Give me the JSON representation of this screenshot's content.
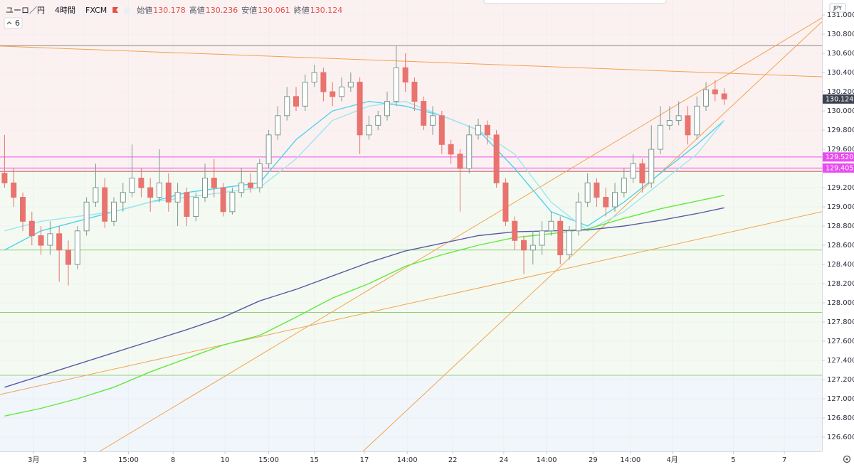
{
  "chart_data": {
    "type": "candlestick",
    "symbol": "ユーロ／円",
    "interval": "4時間",
    "source": "FXCM",
    "ohlc_labels": [
      "始値",
      "高値",
      "安値",
      "終値"
    ],
    "indicator_count": 6,
    "currency": "JPY",
    "open": [
      129.35,
      129.25,
      129.1,
      128.85,
      128.7,
      128.6,
      128.72,
      128.55,
      128.4,
      128.75,
      129.05,
      129.2,
      128.85,
      129.05,
      129.15,
      129.3,
      129.2,
      129.1,
      129.25,
      129.05,
      129.15,
      128.9,
      129.1,
      129.3,
      129.2,
      128.95,
      129.15,
      129.25,
      129.2,
      129.45,
      129.75,
      129.95,
      130.15,
      130.05,
      130.3,
      130.4,
      130.2,
      130.15,
      130.25,
      130.3,
      129.75,
      129.85,
      129.95,
      130.1,
      130.45,
      130.3,
      130.1,
      129.85,
      129.95,
      129.65,
      129.55,
      129.4,
      129.75,
      129.85,
      129.75,
      129.25,
      128.85,
      128.65,
      128.55,
      128.6,
      128.75,
      128.85,
      128.5,
      128.75,
      129.05,
      129.25,
      129.1,
      129.0,
      129.15,
      129.3,
      129.45,
      129.25,
      129.6,
      129.85,
      129.9,
      129.95,
      129.75,
      130.05,
      130.22,
      130.178
    ],
    "high": [
      129.75,
      129.4,
      129.15,
      128.95,
      128.8,
      128.85,
      128.8,
      128.65,
      128.8,
      129.1,
      129.45,
      129.3,
      129.1,
      129.25,
      129.65,
      129.4,
      129.3,
      129.6,
      129.35,
      129.25,
      129.2,
      129.15,
      129.45,
      129.5,
      129.25,
      129.2,
      129.4,
      129.35,
      129.5,
      129.8,
      130.05,
      130.25,
      130.25,
      130.38,
      130.48,
      130.45,
      130.3,
      130.35,
      130.4,
      130.35,
      129.95,
      130.0,
      130.2,
      130.68,
      130.6,
      130.35,
      130.15,
      130.05,
      130.0,
      129.7,
      129.6,
      129.85,
      129.92,
      129.9,
      129.8,
      129.3,
      128.9,
      128.7,
      128.75,
      128.85,
      128.95,
      128.9,
      128.8,
      129.15,
      129.35,
      129.3,
      129.2,
      129.25,
      129.4,
      129.55,
      129.5,
      129.85,
      130.05,
      130.05,
      130.1,
      130.05,
      130.15,
      130.3,
      130.32,
      130.236
    ],
    "low": [
      129.2,
      129.0,
      128.75,
      128.6,
      128.5,
      128.5,
      128.22,
      128.18,
      128.35,
      128.7,
      129.0,
      128.78,
      128.8,
      128.95,
      129.1,
      129.1,
      128.95,
      129.05,
      128.95,
      128.8,
      128.8,
      128.85,
      129.05,
      129.1,
      128.9,
      128.92,
      129.1,
      129.15,
      129.15,
      129.4,
      129.7,
      129.9,
      130.0,
      130.0,
      130.25,
      130.1,
      130.05,
      130.1,
      130.2,
      129.55,
      129.7,
      129.8,
      129.9,
      130.05,
      130.2,
      130.0,
      129.8,
      129.75,
      129.55,
      129.45,
      128.95,
      129.35,
      129.7,
      129.65,
      129.2,
      128.8,
      128.55,
      128.3,
      128.4,
      128.5,
      128.7,
      128.4,
      128.45,
      128.7,
      129.0,
      129.0,
      128.9,
      128.95,
      129.1,
      129.25,
      129.15,
      129.2,
      129.55,
      129.8,
      129.85,
      129.65,
      129.7,
      130.0,
      130.1,
      130.061
    ],
    "close": [
      129.25,
      129.1,
      128.85,
      128.7,
      128.6,
      128.72,
      128.55,
      128.4,
      128.75,
      129.05,
      129.2,
      128.85,
      129.05,
      129.15,
      129.3,
      129.2,
      129.1,
      129.25,
      129.05,
      129.15,
      128.9,
      129.1,
      129.3,
      129.2,
      128.95,
      129.15,
      129.25,
      129.2,
      129.45,
      129.75,
      129.95,
      130.15,
      130.05,
      130.3,
      130.4,
      130.2,
      130.15,
      130.25,
      130.3,
      129.75,
      129.85,
      129.95,
      130.1,
      130.45,
      130.3,
      130.1,
      129.85,
      129.95,
      129.65,
      129.55,
      129.4,
      129.75,
      129.85,
      129.75,
      129.25,
      128.85,
      128.65,
      128.55,
      128.6,
      128.75,
      128.85,
      128.5,
      128.75,
      129.05,
      129.25,
      129.1,
      129.0,
      129.15,
      129.3,
      129.45,
      129.25,
      129.6,
      129.85,
      129.9,
      129.95,
      129.75,
      130.05,
      130.22,
      130.178,
      130.124
    ],
    "up_color": "#ffffff",
    "up_border": "#7a9a90",
    "down_color": "#e8736f",
    "ma_x": [
      0,
      4,
      8,
      12,
      16,
      20,
      24,
      28,
      32,
      36,
      40,
      44,
      48,
      52,
      56,
      60,
      64,
      68,
      72,
      76,
      79
    ],
    "moving_averages": [
      {
        "color": "#4fd3ee",
        "values": [
          128.55,
          128.75,
          128.85,
          128.95,
          129.05,
          129.15,
          129.2,
          129.25,
          129.7,
          130.0,
          130.1,
          130.05,
          129.95,
          129.8,
          129.4,
          128.95,
          128.8,
          129.05,
          129.35,
          129.65,
          129.9
        ]
      },
      {
        "color": "#9ee6f2",
        "values": [
          128.75,
          128.85,
          128.9,
          128.95,
          129.05,
          129.1,
          129.15,
          129.2,
          129.5,
          129.9,
          130.05,
          130.1,
          129.95,
          129.8,
          129.55,
          129.05,
          128.75,
          128.95,
          129.25,
          129.55,
          129.9
        ]
      },
      {
        "color": "#62e83e",
        "values": [
          126.82,
          126.9,
          127.0,
          127.12,
          127.28,
          127.42,
          127.56,
          127.66,
          127.85,
          128.05,
          128.2,
          128.38,
          128.5,
          128.6,
          128.68,
          128.72,
          128.77,
          128.88,
          128.98,
          129.06,
          129.12
        ]
      },
      {
        "color": "#5a5aa6",
        "values": [
          127.12,
          127.24,
          127.36,
          127.48,
          127.6,
          127.72,
          127.85,
          128.02,
          128.14,
          128.28,
          128.42,
          128.54,
          128.62,
          128.7,
          128.74,
          128.75,
          128.76,
          128.8,
          128.86,
          128.93,
          128.99
        ]
      }
    ],
    "trendlines": [
      {
        "color": "#f3a24f",
        "x": [
          -0.5,
          89.73
        ],
        "y": [
          130.675,
          130.356
        ]
      },
      {
        "color": "#f3a24f",
        "x": [
          -0.5,
          89.73
        ],
        "y": [
          127.045,
          128.95
        ]
      },
      {
        "color": "#f3a24f",
        "x": [
          10.44,
          89.73
        ],
        "y": [
          126.452,
          130.97
        ]
      },
      {
        "color": "#f3a24f",
        "x": [
          39.34,
          89.73
        ],
        "y": [
          126.452,
          130.93
        ]
      }
    ],
    "bands": [
      {
        "from": 129.37,
        "to": 131.156,
        "color": "#fcf1f1"
      },
      {
        "from": 127.24,
        "to": 129.37,
        "color": "#f4faf1"
      },
      {
        "from": 126.452,
        "to": 127.24,
        "color": "#f1f6fb"
      }
    ],
    "hlines": [
      {
        "value": 130.68,
        "color": "#8a8a8a"
      },
      {
        "value": 129.52,
        "color": "#e94cf0",
        "label": "129.520"
      },
      {
        "value": 129.405,
        "color": "#e94cf0",
        "label": "129.405"
      },
      {
        "value": 129.37,
        "color": "#c0504d"
      },
      {
        "value": 128.55,
        "color": "#8fd07a"
      },
      {
        "value": 127.9,
        "color": "#8fd07a"
      },
      {
        "value": 127.245,
        "color": "#8fd07a"
      }
    ],
    "last_price_color": "#3d4350",
    "xlim": [
      -0.5,
      89.73
    ],
    "xticks": [
      {
        "value": 3.2,
        "label": "3月"
      },
      {
        "value": 8.8,
        "label": "3"
      },
      {
        "value": 13.6,
        "label": "15:00"
      },
      {
        "value": 18.5,
        "label": "8"
      },
      {
        "value": 24.2,
        "label": "10"
      },
      {
        "value": 29,
        "label": "15:00"
      },
      {
        "value": 34,
        "label": "15"
      },
      {
        "value": 39.5,
        "label": "17"
      },
      {
        "value": 44.2,
        "label": "14:00"
      },
      {
        "value": 49.2,
        "label": "22"
      },
      {
        "value": 54.8,
        "label": "24"
      },
      {
        "value": 59.5,
        "label": "14:00"
      },
      {
        "value": 64.6,
        "label": "29"
      },
      {
        "value": 68.7,
        "label": "14:00"
      },
      {
        "value": 73.3,
        "label": "4月"
      },
      {
        "value": 80,
        "label": "5"
      },
      {
        "value": 85.6,
        "label": "7"
      }
    ],
    "ylim": [
      126.452,
      131.156
    ],
    "yticks": [
      {
        "value": 126.6,
        "label": "126.600"
      },
      {
        "value": 126.8,
        "label": "126.800"
      },
      {
        "value": 127,
        "label": "127.000"
      },
      {
        "value": 127.2,
        "label": "127.200"
      },
      {
        "value": 127.4,
        "label": "127.400"
      },
      {
        "value": 127.6,
        "label": "127.600"
      },
      {
        "value": 127.8,
        "label": "127.800"
      },
      {
        "value": 128,
        "label": "128.000"
      },
      {
        "value": 128.2,
        "label": "128.200"
      },
      {
        "value": 128.4,
        "label": "128.400"
      },
      {
        "value": 128.6,
        "label": "128.600"
      },
      {
        "value": 128.8,
        "label": "128.800"
      },
      {
        "value": 129,
        "label": "129.000"
      },
      {
        "value": 129.2,
        "label": "129.200"
      },
      {
        "value": 129.4,
        "label": "129.400"
      },
      {
        "value": 129.6,
        "label": "129.600"
      },
      {
        "value": 129.8,
        "label": "129.800"
      },
      {
        "value": 130,
        "label": "130.000"
      },
      {
        "value": 130.2,
        "label": "130.200"
      },
      {
        "value": 130.4,
        "label": "130.400"
      },
      {
        "value": 130.6,
        "label": "130.600"
      },
      {
        "value": 130.8,
        "label": "130.800"
      },
      {
        "value": 131,
        "label": "131.000"
      }
    ],
    "grid": true
  }
}
